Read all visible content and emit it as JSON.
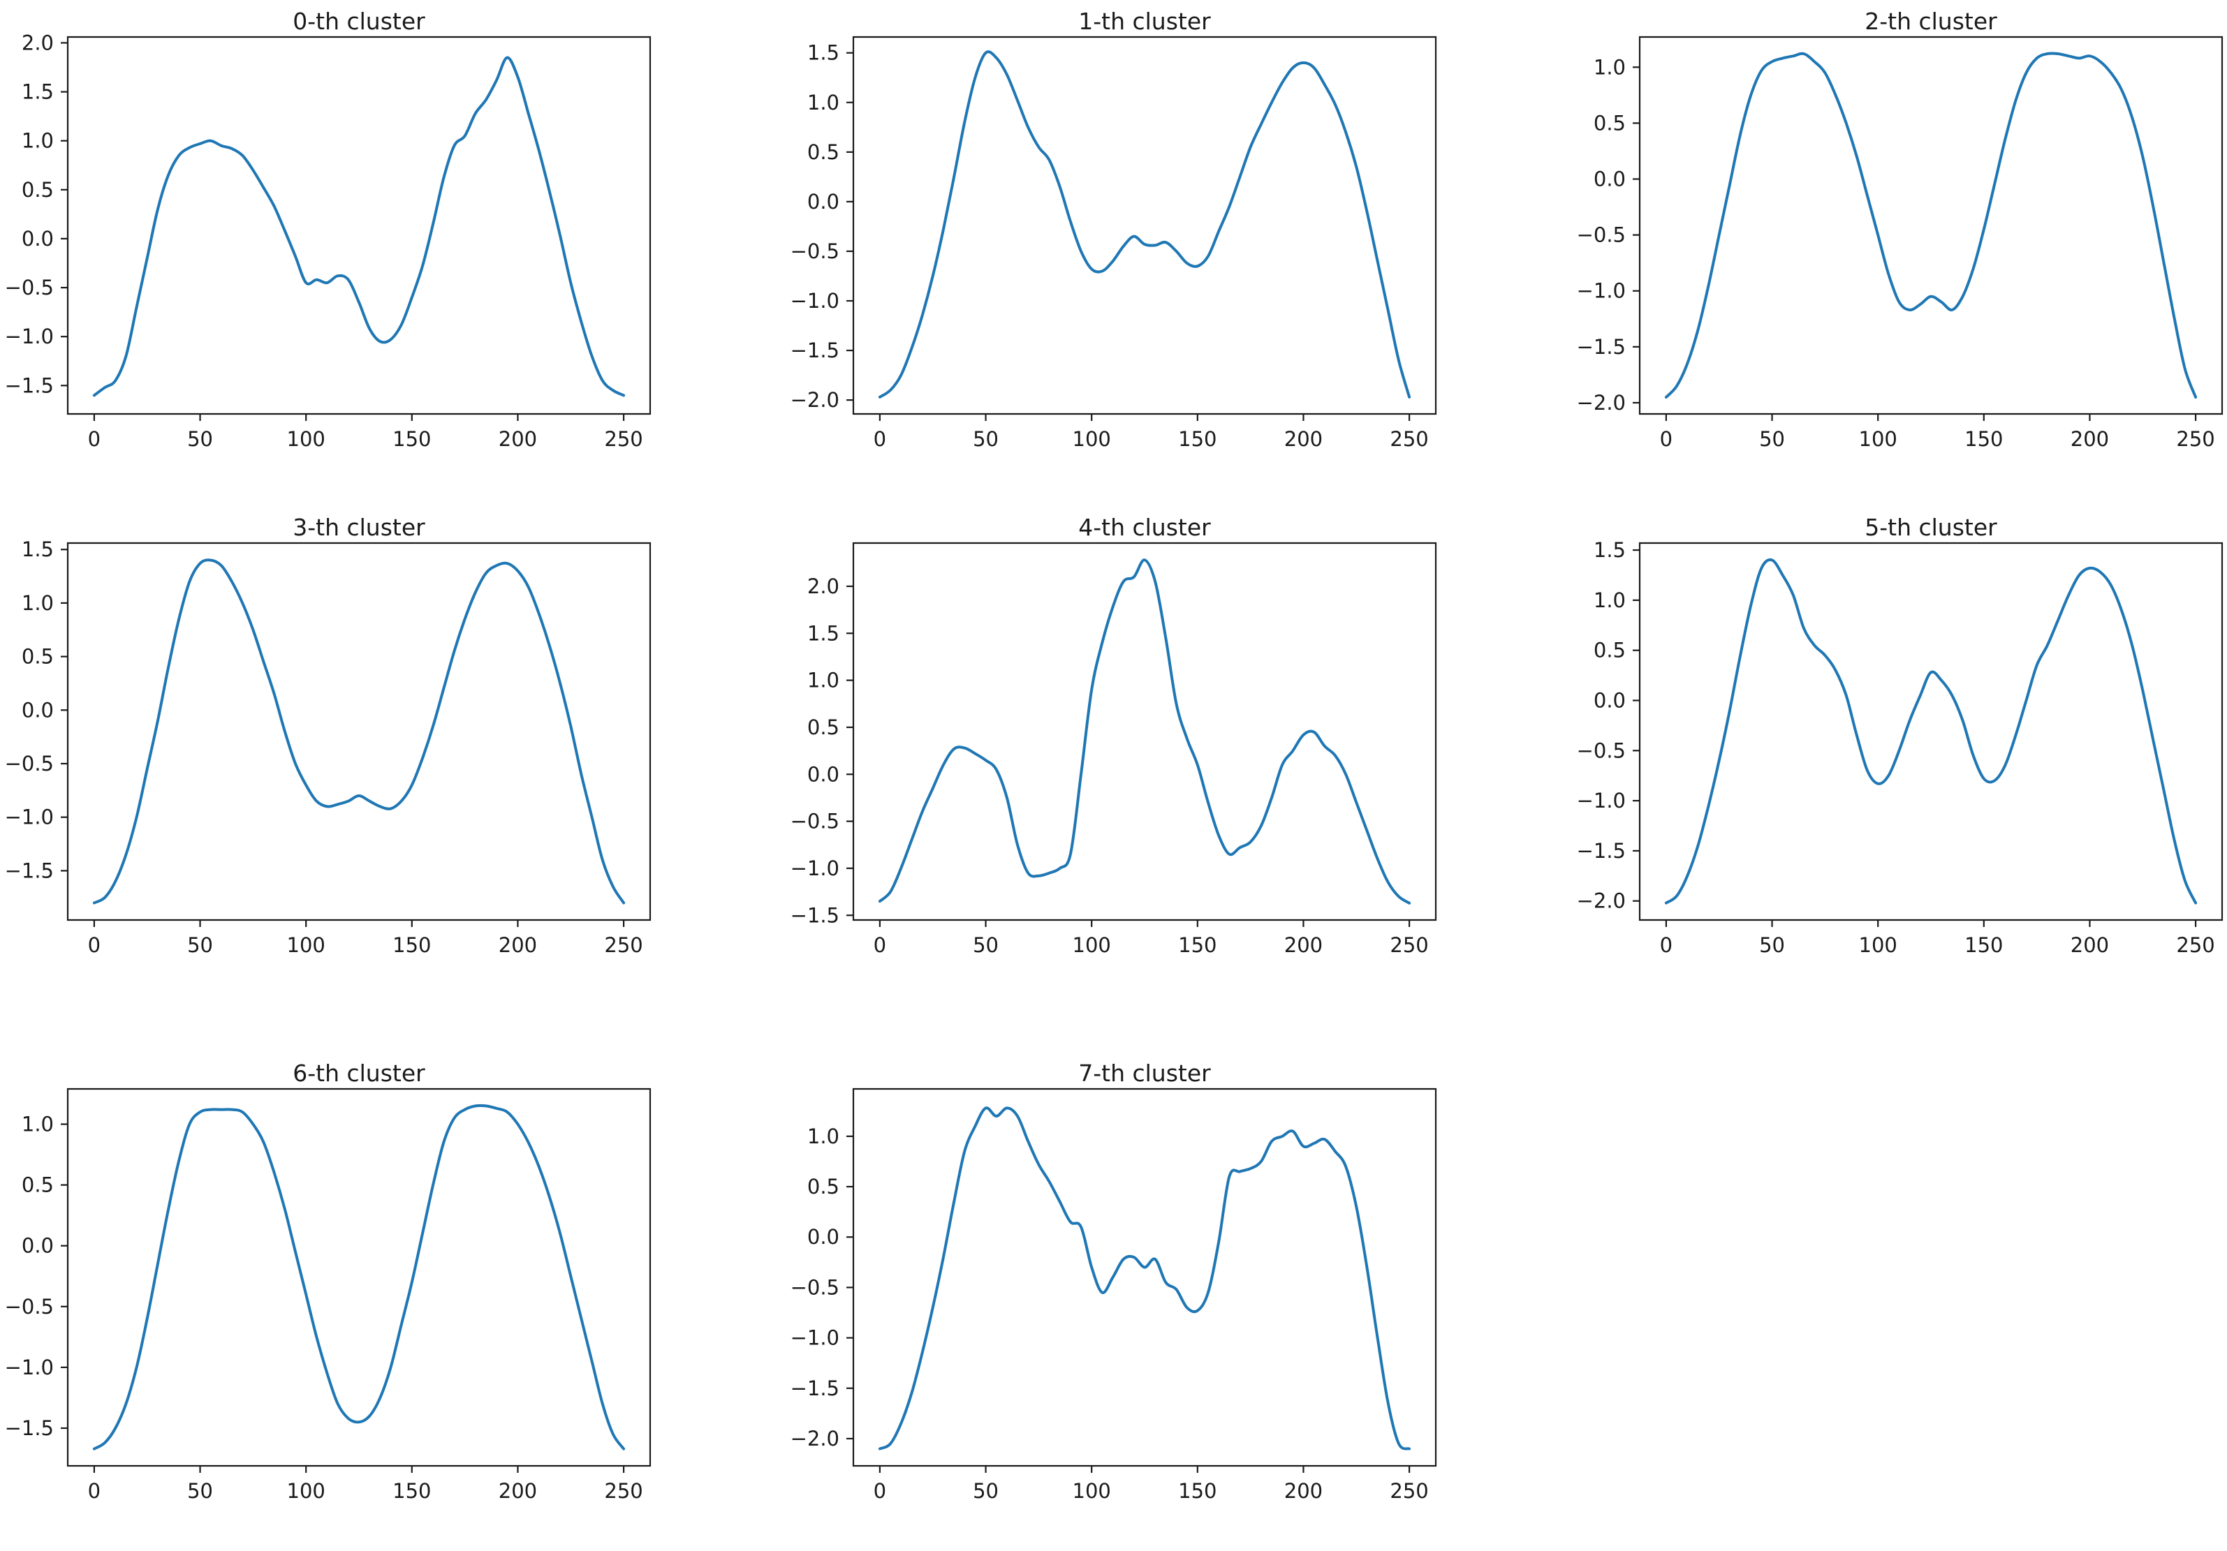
{
  "figure": {
    "background_color": "#ffffff",
    "line_color": "#1f77b4",
    "spine_color": "#1a1a1a",
    "text_color": "#1a1a1a"
  },
  "chart_data": [
    {
      "type": "line",
      "title": "0-th cluster",
      "xlabel": "",
      "ylabel": "",
      "grid": false,
      "legend": null,
      "xlim": [
        -12.5,
        262.5
      ],
      "ylim": [
        -1.79,
        2.06
      ],
      "x_ticks": [
        0,
        50,
        100,
        150,
        200,
        250
      ],
      "x_tick_labels": [
        "0",
        "50",
        "100",
        "150",
        "200",
        "250"
      ],
      "y_ticks": [
        2.0,
        1.5,
        1.0,
        0.5,
        0.0,
        -0.5,
        -1.0,
        -1.5
      ],
      "y_tick_labels": [
        "2.0",
        "1.5",
        "1.0",
        "0.5",
        "0.0",
        "−0.5",
        "−1.0",
        "−1.5"
      ],
      "x_start": 0,
      "x_step": 5,
      "values": [
        -1.6,
        -1.52,
        -1.45,
        -1.2,
        -0.7,
        -0.2,
        0.3,
        0.65,
        0.85,
        0.93,
        0.97,
        1.0,
        0.95,
        0.92,
        0.85,
        0.7,
        0.52,
        0.33,
        0.08,
        -0.18,
        -0.45,
        -0.42,
        -0.45,
        -0.38,
        -0.42,
        -0.65,
        -0.92,
        -1.05,
        -1.03,
        -0.88,
        -0.6,
        -0.28,
        0.15,
        0.62,
        0.95,
        1.05,
        1.28,
        1.42,
        1.62,
        1.85,
        1.65,
        1.28,
        0.9,
        0.48,
        0.03,
        -0.45,
        -0.85,
        -1.2,
        -1.45,
        -1.55,
        -1.6
      ]
    },
    {
      "type": "line",
      "title": "1-th cluster",
      "xlabel": "",
      "ylabel": "",
      "grid": false,
      "legend": null,
      "xlim": [
        -12.5,
        262.5
      ],
      "ylim": [
        -2.14,
        1.66
      ],
      "x_ticks": [
        0,
        50,
        100,
        150,
        200,
        250
      ],
      "x_tick_labels": [
        "0",
        "50",
        "100",
        "150",
        "200",
        "250"
      ],
      "y_ticks": [
        1.5,
        1.0,
        0.5,
        0.0,
        -0.5,
        -1.0,
        -1.5,
        -2.0
      ],
      "y_tick_labels": [
        "1.5",
        "1.0",
        "0.5",
        "0.0",
        "−0.5",
        "−1.0",
        "−1.5",
        "−2.0"
      ],
      "x_start": 0,
      "x_step": 5,
      "values": [
        -1.97,
        -1.9,
        -1.75,
        -1.48,
        -1.15,
        -0.75,
        -0.28,
        0.25,
        0.8,
        1.25,
        1.5,
        1.45,
        1.28,
        1.02,
        0.75,
        0.55,
        0.42,
        0.15,
        -0.2,
        -0.5,
        -0.68,
        -0.7,
        -0.6,
        -0.45,
        -0.35,
        -0.43,
        -0.44,
        -0.41,
        -0.5,
        -0.62,
        -0.65,
        -0.55,
        -0.3,
        -0.05,
        0.25,
        0.55,
        0.78,
        1.0,
        1.2,
        1.35,
        1.4,
        1.35,
        1.18,
        0.98,
        0.7,
        0.35,
        -0.1,
        -0.6,
        -1.1,
        -1.6,
        -1.97
      ]
    },
    {
      "type": "line",
      "title": "2-th cluster",
      "xlabel": "",
      "ylabel": "",
      "grid": false,
      "legend": null,
      "xlim": [
        -12.5,
        262.5
      ],
      "ylim": [
        -2.1,
        1.27
      ],
      "x_ticks": [
        0,
        50,
        100,
        150,
        200,
        250
      ],
      "x_tick_labels": [
        "0",
        "50",
        "100",
        "150",
        "200",
        "250"
      ],
      "y_ticks": [
        1.0,
        0.5,
        0.0,
        -0.5,
        -1.0,
        -1.5,
        -2.0
      ],
      "y_tick_labels": [
        "1.0",
        "0.5",
        "0.0",
        "−0.5",
        "−1.0",
        "−1.5",
        "−2.0"
      ],
      "x_start": 0,
      "x_step": 5,
      "values": [
        -1.95,
        -1.85,
        -1.65,
        -1.35,
        -0.95,
        -0.5,
        -0.05,
        0.4,
        0.75,
        0.97,
        1.05,
        1.08,
        1.1,
        1.12,
        1.05,
        0.95,
        0.75,
        0.5,
        0.2,
        -0.15,
        -0.5,
        -0.85,
        -1.1,
        -1.17,
        -1.12,
        -1.05,
        -1.1,
        -1.17,
        -1.05,
        -0.8,
        -0.45,
        -0.05,
        0.35,
        0.7,
        0.95,
        1.08,
        1.12,
        1.12,
        1.1,
        1.08,
        1.1,
        1.05,
        0.95,
        0.8,
        0.55,
        0.2,
        -0.25,
        -0.75,
        -1.25,
        -1.7,
        -1.95
      ]
    },
    {
      "type": "line",
      "title": "3-th cluster",
      "xlabel": "",
      "ylabel": "",
      "grid": false,
      "legend": null,
      "xlim": [
        -12.5,
        262.5
      ],
      "ylim": [
        -1.96,
        1.56
      ],
      "x_ticks": [
        0,
        50,
        100,
        150,
        200,
        250
      ],
      "x_tick_labels": [
        "0",
        "50",
        "100",
        "150",
        "200",
        "250"
      ],
      "y_ticks": [
        1.5,
        1.0,
        0.5,
        0.0,
        -0.5,
        -1.0,
        -1.5
      ],
      "y_tick_labels": [
        "1.5",
        "1.0",
        "0.5",
        "0.0",
        "−0.5",
        "−1.0",
        "−1.5"
      ],
      "x_start": 0,
      "x_step": 5,
      "values": [
        -1.8,
        -1.75,
        -1.6,
        -1.35,
        -1.0,
        -0.55,
        -0.1,
        0.4,
        0.85,
        1.2,
        1.37,
        1.4,
        1.35,
        1.2,
        1.0,
        0.75,
        0.45,
        0.15,
        -0.2,
        -0.5,
        -0.7,
        -0.85,
        -0.9,
        -0.88,
        -0.85,
        -0.8,
        -0.85,
        -0.9,
        -0.92,
        -0.85,
        -0.7,
        -0.45,
        -0.15,
        0.2,
        0.55,
        0.85,
        1.1,
        1.28,
        1.35,
        1.37,
        1.3,
        1.15,
        0.9,
        0.6,
        0.25,
        -0.15,
        -0.6,
        -1.0,
        -1.4,
        -1.65,
        -1.8
      ]
    },
    {
      "type": "line",
      "title": "4-th cluster",
      "xlabel": "",
      "ylabel": "",
      "grid": false,
      "legend": null,
      "xlim": [
        -12.5,
        262.5
      ],
      "ylim": [
        -1.55,
        2.46
      ],
      "x_ticks": [
        0,
        50,
        100,
        150,
        200,
        250
      ],
      "x_tick_labels": [
        "0",
        "50",
        "100",
        "150",
        "200",
        "250"
      ],
      "y_ticks": [
        2.0,
        1.5,
        1.0,
        0.5,
        0.0,
        -0.5,
        -1.0,
        -1.5
      ],
      "y_tick_labels": [
        "2.0",
        "1.5",
        "1.0",
        "0.5",
        "0.0",
        "−0.5",
        "−1.0",
        "−1.5"
      ],
      "x_start": 0,
      "x_step": 5,
      "values": [
        -1.35,
        -1.25,
        -1.0,
        -0.7,
        -0.4,
        -0.15,
        0.1,
        0.27,
        0.28,
        0.22,
        0.15,
        0.05,
        -0.25,
        -0.75,
        -1.05,
        -1.08,
        -1.05,
        -1.0,
        -0.85,
        0.0,
        0.9,
        1.4,
        1.78,
        2.05,
        2.1,
        2.28,
        2.05,
        1.45,
        0.75,
        0.38,
        0.1,
        -0.3,
        -0.65,
        -0.85,
        -0.78,
        -0.72,
        -0.55,
        -0.25,
        0.1,
        0.25,
        0.42,
        0.45,
        0.3,
        0.2,
        0.0,
        -0.3,
        -0.6,
        -0.9,
        -1.15,
        -1.3,
        -1.37
      ]
    },
    {
      "type": "line",
      "title": "5-th cluster",
      "xlabel": "",
      "ylabel": "",
      "grid": false,
      "legend": null,
      "xlim": [
        -12.5,
        262.5
      ],
      "ylim": [
        -2.19,
        1.57
      ],
      "x_ticks": [
        0,
        50,
        100,
        150,
        200,
        250
      ],
      "x_tick_labels": [
        "0",
        "50",
        "100",
        "150",
        "200",
        "250"
      ],
      "y_ticks": [
        1.5,
        1.0,
        0.5,
        0.0,
        -0.5,
        -1.0,
        -1.5,
        -2.0
      ],
      "y_tick_labels": [
        "1.5",
        "1.0",
        "0.5",
        "0.0",
        "−0.5",
        "−1.0",
        "−1.5",
        "−2.0"
      ],
      "x_start": 0,
      "x_step": 5,
      "values": [
        -2.02,
        -1.95,
        -1.75,
        -1.45,
        -1.05,
        -0.6,
        -0.1,
        0.45,
        0.95,
        1.32,
        1.4,
        1.25,
        1.05,
        0.72,
        0.55,
        0.45,
        0.3,
        0.05,
        -0.35,
        -0.7,
        -0.83,
        -0.75,
        -0.5,
        -0.2,
        0.05,
        0.28,
        0.2,
        0.05,
        -0.2,
        -0.55,
        -0.78,
        -0.8,
        -0.65,
        -0.35,
        0.0,
        0.35,
        0.55,
        0.8,
        1.05,
        1.25,
        1.32,
        1.28,
        1.15,
        0.9,
        0.55,
        0.1,
        -0.4,
        -0.9,
        -1.4,
        -1.8,
        -2.02
      ]
    },
    {
      "type": "line",
      "title": "6-th cluster",
      "xlabel": "",
      "ylabel": "",
      "grid": false,
      "legend": null,
      "xlim": [
        -12.5,
        262.5
      ],
      "ylim": [
        -1.81,
        1.29
      ],
      "x_ticks": [
        0,
        50,
        100,
        150,
        200,
        250
      ],
      "x_tick_labels": [
        "0",
        "50",
        "100",
        "150",
        "200",
        "250"
      ],
      "y_ticks": [
        1.0,
        0.5,
        0.0,
        -0.5,
        -1.0,
        -1.5
      ],
      "y_tick_labels": [
        "1.0",
        "0.5",
        "0.0",
        "−0.5",
        "−1.0",
        "−1.5"
      ],
      "x_start": 0,
      "x_step": 5,
      "values": [
        -1.67,
        -1.62,
        -1.5,
        -1.3,
        -1.0,
        -0.6,
        -0.15,
        0.3,
        0.7,
        1.0,
        1.1,
        1.12,
        1.12,
        1.12,
        1.1,
        1.0,
        0.85,
        0.6,
        0.3,
        -0.05,
        -0.4,
        -0.75,
        -1.05,
        -1.3,
        -1.42,
        -1.45,
        -1.4,
        -1.25,
        -1.0,
        -0.65,
        -0.3,
        0.1,
        0.5,
        0.85,
        1.05,
        1.12,
        1.15,
        1.15,
        1.13,
        1.1,
        1.0,
        0.85,
        0.65,
        0.4,
        0.1,
        -0.25,
        -0.6,
        -0.95,
        -1.3,
        -1.55,
        -1.67
      ]
    },
    {
      "type": "line",
      "title": "7-th cluster",
      "xlabel": "",
      "ylabel": "",
      "grid": false,
      "legend": null,
      "xlim": [
        -12.5,
        262.5
      ],
      "ylim": [
        -2.27,
        1.47
      ],
      "x_ticks": [
        0,
        50,
        100,
        150,
        200,
        250
      ],
      "x_tick_labels": [
        "0",
        "50",
        "100",
        "150",
        "200",
        "250"
      ],
      "y_ticks": [
        1.0,
        0.5,
        0.0,
        -0.5,
        -1.0,
        -1.5,
        -2.0
      ],
      "y_tick_labels": [
        "1.0",
        "0.5",
        "0.0",
        "−0.5",
        "−1.0",
        "−1.5",
        "−2.0"
      ],
      "x_start": 0,
      "x_step": 5,
      "values": [
        -2.1,
        -2.05,
        -1.85,
        -1.55,
        -1.15,
        -0.7,
        -0.2,
        0.35,
        0.85,
        1.1,
        1.28,
        1.2,
        1.28,
        1.2,
        0.95,
        0.72,
        0.55,
        0.35,
        0.15,
        0.1,
        -0.3,
        -0.55,
        -0.4,
        -0.22,
        -0.2,
        -0.3,
        -0.22,
        -0.45,
        -0.52,
        -0.7,
        -0.73,
        -0.55,
        -0.05,
        0.6,
        0.65,
        0.68,
        0.75,
        0.95,
        1.0,
        1.05,
        0.9,
        0.93,
        0.97,
        0.85,
        0.7,
        0.3,
        -0.3,
        -1.0,
        -1.65,
        -2.05,
        -2.1
      ]
    }
  ]
}
